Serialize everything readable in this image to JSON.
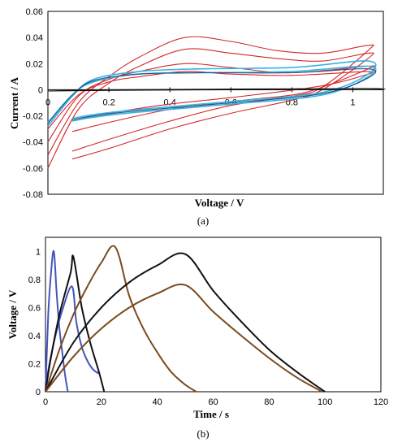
{
  "chart_data": [
    {
      "type": "line",
      "caption": "(a)",
      "xlabel": "Voltage / V",
      "ylabel": "Current / A",
      "xlim": [
        0,
        1.1
      ],
      "ylim": [
        -0.08,
        0.06
      ],
      "xticks": [
        "0",
        "0.2",
        "0.4",
        "0.6",
        "0.8",
        "1"
      ],
      "yticks": [
        "0.06",
        "0.04",
        "0.02",
        "0",
        "-0.02",
        "-0.04",
        "-0.06",
        "-0.08"
      ],
      "colors": {
        "red": "#d62728",
        "cyan": "#33b6e0",
        "navy": "#2e4a87",
        "black": "#111111"
      },
      "series": [
        {
          "color": "red",
          "anodic": [
            [
              0.0,
              -0.05
            ],
            [
              0.1,
              -0.01
            ],
            [
              0.2,
              0.01
            ],
            [
              0.3,
              0.025
            ],
            [
              0.45,
              0.04
            ],
            [
              0.6,
              0.037
            ],
            [
              0.75,
              0.03
            ],
            [
              0.9,
              0.028
            ],
            [
              1.05,
              0.034
            ]
          ],
          "cathodic": [
            [
              1.05,
              0.03
            ],
            [
              0.9,
              0.002
            ],
            [
              0.8,
              -0.005
            ],
            [
              0.6,
              -0.012
            ],
            [
              0.4,
              -0.024
            ],
            [
              0.2,
              -0.038
            ],
            [
              0.08,
              -0.047
            ]
          ]
        },
        {
          "color": "red",
          "anodic": [
            [
              0.0,
              -0.06
            ],
            [
              0.1,
              -0.015
            ],
            [
              0.2,
              0.005
            ],
            [
              0.3,
              0.018
            ],
            [
              0.45,
              0.031
            ],
            [
              0.6,
              0.028
            ],
            [
              0.75,
              0.024
            ],
            [
              0.9,
              0.022
            ],
            [
              1.05,
              0.028
            ]
          ],
          "cathodic": [
            [
              1.05,
              0.024
            ],
            [
              0.9,
              0.0
            ],
            [
              0.8,
              -0.008
            ],
            [
              0.6,
              -0.018
            ],
            [
              0.4,
              -0.03
            ],
            [
              0.2,
              -0.045
            ],
            [
              0.08,
              -0.053
            ]
          ]
        },
        {
          "color": "red",
          "anodic": [
            [
              0.0,
              -0.04
            ],
            [
              0.1,
              -0.005
            ],
            [
              0.2,
              0.008
            ],
            [
              0.3,
              0.014
            ],
            [
              0.45,
              0.02
            ],
            [
              0.6,
              0.017
            ],
            [
              0.8,
              0.013
            ],
            [
              1.05,
              0.018
            ]
          ],
          "cathodic": [
            [
              1.05,
              0.016
            ],
            [
              0.9,
              0.002
            ],
            [
              0.8,
              -0.004
            ],
            [
              0.6,
              -0.009
            ],
            [
              0.4,
              -0.015
            ],
            [
              0.2,
              -0.025
            ],
            [
              0.08,
              -0.032
            ]
          ]
        },
        {
          "color": "red",
          "anodic": [
            [
              0.0,
              -0.03
            ],
            [
              0.1,
              -0.004
            ],
            [
              0.2,
              0.006
            ],
            [
              0.3,
              0.01
            ],
            [
              0.45,
              0.014
            ],
            [
              0.6,
              0.012
            ],
            [
              0.8,
              0.011
            ],
            [
              1.05,
              0.014
            ]
          ],
          "cathodic": [
            [
              1.05,
              0.012
            ],
            [
              0.9,
              0.003
            ],
            [
              0.6,
              -0.006
            ],
            [
              0.4,
              -0.011
            ],
            [
              0.2,
              -0.018
            ],
            [
              0.08,
              -0.024
            ]
          ]
        },
        {
          "color": "cyan",
          "anodic": [
            [
              0.0,
              -0.028
            ],
            [
              0.08,
              -0.005
            ],
            [
              0.15,
              0.008
            ],
            [
              0.3,
              0.014
            ],
            [
              0.5,
              0.016
            ],
            [
              0.8,
              0.017
            ],
            [
              1.05,
              0.022
            ]
          ],
          "cathodic": [
            [
              1.05,
              0.012
            ],
            [
              0.9,
              -0.002
            ],
            [
              0.6,
              -0.009
            ],
            [
              0.3,
              -0.015
            ],
            [
              0.15,
              -0.019
            ],
            [
              0.08,
              -0.022
            ]
          ]
        },
        {
          "color": "cyan",
          "anodic": [
            [
              0.0,
              -0.025
            ],
            [
              0.08,
              -0.004
            ],
            [
              0.15,
              0.006
            ],
            [
              0.3,
              0.012
            ],
            [
              0.5,
              0.013
            ],
            [
              0.8,
              0.014
            ],
            [
              1.05,
              0.018
            ]
          ],
          "cathodic": [
            [
              1.05,
              0.01
            ],
            [
              0.9,
              -0.004
            ],
            [
              0.6,
              -0.011
            ],
            [
              0.3,
              -0.017
            ],
            [
              0.15,
              -0.021
            ],
            [
              0.08,
              -0.024
            ]
          ]
        },
        {
          "color": "navy",
          "anodic": [
            [
              0.0,
              -0.026
            ],
            [
              0.08,
              -0.004
            ],
            [
              0.15,
              0.007
            ],
            [
              0.3,
              0.012
            ],
            [
              0.5,
              0.013
            ],
            [
              0.8,
              0.013
            ],
            [
              1.05,
              0.016
            ]
          ],
          "cathodic": [
            [
              1.05,
              0.009
            ],
            [
              0.9,
              -0.003
            ],
            [
              0.6,
              -0.01
            ],
            [
              0.3,
              -0.016
            ],
            [
              0.15,
              -0.02
            ],
            [
              0.08,
              -0.023
            ]
          ]
        },
        {
          "color": "black",
          "anodic": [
            [
              0.0,
              -0.001
            ],
            [
              0.2,
              0.0
            ],
            [
              0.6,
              0.0005
            ],
            [
              1.05,
              0.001
            ]
          ],
          "cathodic": [
            [
              1.05,
              0.0
            ],
            [
              0.6,
              0.0
            ],
            [
              0.2,
              -0.0005
            ],
            [
              0.0,
              -0.001
            ]
          ]
        }
      ]
    },
    {
      "type": "line",
      "caption": "(b)",
      "xlabel": "Time / s",
      "ylabel": "Voltage / V",
      "xlim": [
        0,
        120
      ],
      "ylim": [
        0,
        1.1
      ],
      "xticks": [
        "0",
        "20",
        "40",
        "60",
        "80",
        "100",
        "120"
      ],
      "yticks": [
        "1",
        "0.8",
        "0.6",
        "0.4",
        "0.2",
        "0"
      ],
      "colors": {
        "blue": "#4455bb",
        "black": "#111111",
        "brown": "#7a4a1e"
      },
      "series": [
        {
          "color": "blue",
          "points": [
            [
              0,
              0.0
            ],
            [
              1,
              0.55
            ],
            [
              2,
              0.85
            ],
            [
              3,
              1.0
            ],
            [
              4,
              0.7
            ],
            [
              5,
              0.45
            ],
            [
              6,
              0.28
            ],
            [
              7,
              0.12
            ],
            [
              8,
              0.0
            ]
          ]
        },
        {
          "color": "blue",
          "points": [
            [
              0,
              0.05
            ],
            [
              3,
              0.35
            ],
            [
              6,
              0.58
            ],
            [
              9.5,
              0.75
            ],
            [
              11,
              0.5
            ],
            [
              13,
              0.32
            ],
            [
              15,
              0.22
            ],
            [
              17,
              0.16
            ],
            [
              19,
              0.13
            ]
          ]
        },
        {
          "color": "black",
          "points": [
            [
              0,
              0.0
            ],
            [
              2,
              0.25
            ],
            [
              5,
              0.55
            ],
            [
              9,
              0.85
            ],
            [
              10,
              0.96
            ],
            [
              13,
              0.6
            ],
            [
              16,
              0.35
            ],
            [
              19,
              0.15
            ],
            [
              21,
              0.0
            ]
          ]
        },
        {
          "color": "brown",
          "points": [
            [
              0,
              0.0
            ],
            [
              5,
              0.3
            ],
            [
              10,
              0.55
            ],
            [
              15,
              0.75
            ],
            [
              20,
              0.92
            ],
            [
              25,
              1.03
            ],
            [
              30,
              0.68
            ],
            [
              35,
              0.45
            ],
            [
              40,
              0.28
            ],
            [
              45,
              0.14
            ],
            [
              50,
              0.05
            ],
            [
              54,
              0.0
            ]
          ]
        },
        {
          "color": "black",
          "points": [
            [
              0,
              0.0
            ],
            [
              10,
              0.35
            ],
            [
              20,
              0.6
            ],
            [
              30,
              0.78
            ],
            [
              40,
              0.9
            ],
            [
              50,
              0.98
            ],
            [
              60,
              0.72
            ],
            [
              70,
              0.5
            ],
            [
              80,
              0.3
            ],
            [
              90,
              0.14
            ],
            [
              100,
              0.0
            ]
          ]
        },
        {
          "color": "brown",
          "points": [
            [
              0,
              0.0
            ],
            [
              10,
              0.25
            ],
            [
              20,
              0.45
            ],
            [
              30,
              0.6
            ],
            [
              40,
              0.7
            ],
            [
              50,
              0.76
            ],
            [
              60,
              0.57
            ],
            [
              70,
              0.4
            ],
            [
              80,
              0.24
            ],
            [
              90,
              0.1
            ],
            [
              99,
              0.0
            ]
          ]
        }
      ]
    }
  ]
}
